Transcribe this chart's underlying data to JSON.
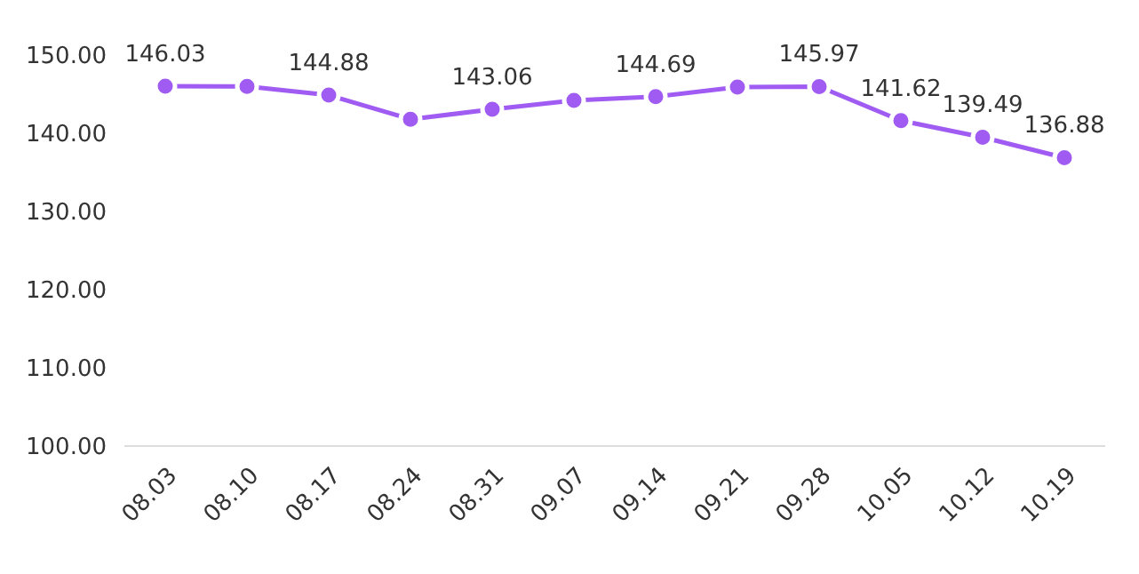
{
  "chart_data": {
    "type": "line",
    "categories": [
      "08.03",
      "08.10",
      "08.17",
      "08.24",
      "08.31",
      "09.07",
      "09.14",
      "09.21",
      "09.28",
      "10.05",
      "10.12",
      "10.19"
    ],
    "series": [
      {
        "color": "#a05cf2",
        "values": [
          146.03,
          146.0,
          144.88,
          141.8,
          143.06,
          144.2,
          144.69,
          145.9,
          145.97,
          141.62,
          139.49,
          136.88
        ],
        "value_labels": [
          "146.03",
          null,
          "144.88",
          null,
          "143.06",
          null,
          "144.69",
          null,
          "145.97",
          "141.62",
          "139.49",
          "136.88"
        ]
      }
    ],
    "ylim": [
      100,
      150
    ],
    "yticks": [
      {
        "value": 100,
        "label": "100.00"
      },
      {
        "value": 110,
        "label": "110.00"
      },
      {
        "value": 120,
        "label": "120.00"
      },
      {
        "value": 130,
        "label": "130.00"
      },
      {
        "value": 140,
        "label": "140.00"
      },
      {
        "value": 150,
        "label": "150.00"
      }
    ],
    "grid": false,
    "marker": "circle",
    "line_style": "solid"
  }
}
